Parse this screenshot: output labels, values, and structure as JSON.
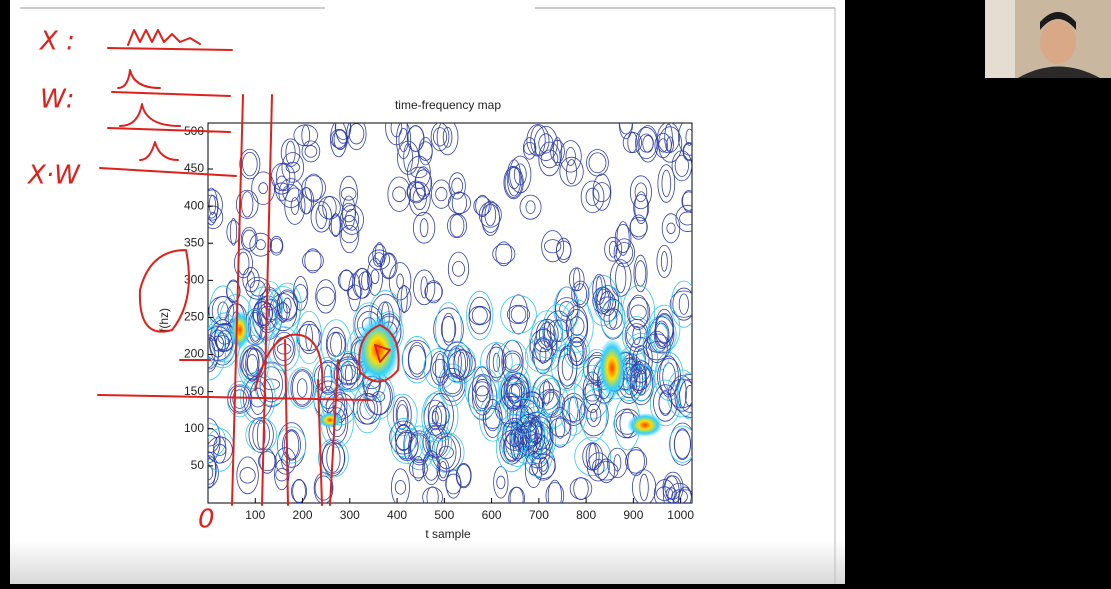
{
  "chart_data": {
    "type": "contour",
    "title": "time-frequency map",
    "xlabel": "t sample",
    "ylabel": "f(hz)",
    "xlim": [
      0,
      1024
    ],
    "ylim": [
      0,
      512
    ],
    "xticks": [
      100,
      200,
      300,
      400,
      500,
      600,
      700,
      800,
      900,
      1000
    ],
    "yticks": [
      50,
      100,
      150,
      200,
      250,
      300,
      350,
      400,
      450,
      500
    ],
    "annotations": [
      "X :",
      "W:",
      "X·W",
      "0"
    ]
  }
}
